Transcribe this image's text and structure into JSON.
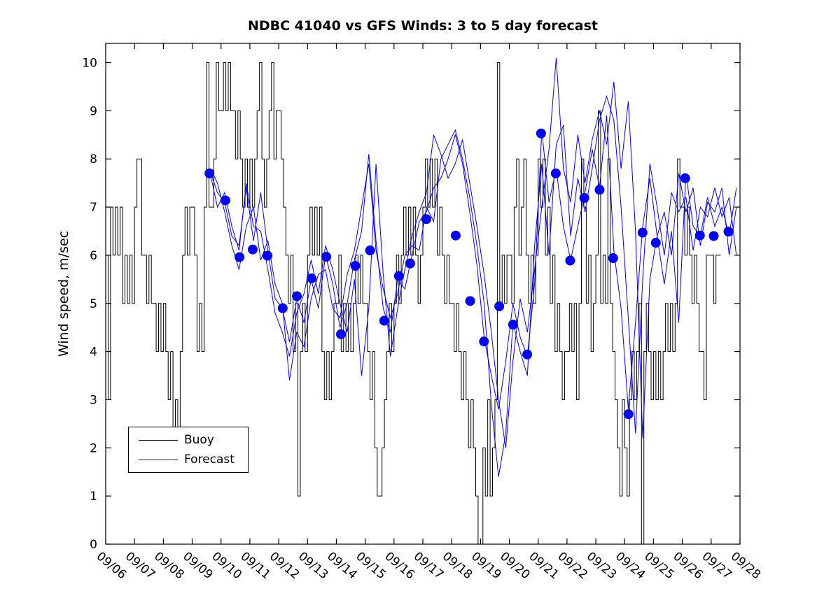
{
  "chart_data": {
    "type": "line",
    "title": "NDBC 41040 vs GFS Winds: 3 to 5 day forecast",
    "xlabel": "",
    "ylabel": "Wind speed, m/sec",
    "grid": false,
    "background_color": "#ffffff",
    "axis_color": "#000000",
    "ylim": [
      0,
      10.4
    ],
    "y_ticks": [
      0,
      1,
      2,
      3,
      4,
      5,
      6,
      7,
      8,
      9,
      10
    ],
    "x_tick_labels": [
      "09/06",
      "09/07",
      "09/08",
      "09/09",
      "09/10",
      "09/11",
      "09/12",
      "09/13",
      "09/14",
      "09/15",
      "09/16",
      "09/17",
      "09/18",
      "09/19",
      "09/20",
      "09/21",
      "09/22",
      "09/23",
      "09/24",
      "09/25",
      "09/26",
      "09/27",
      "09/28"
    ],
    "x_tick_angle_deg": 40,
    "legend": {
      "position": "lower-left",
      "entries": [
        {
          "label": "Buoy",
          "color": "#000000"
        },
        {
          "label": "Forecast",
          "color": "#0000ff"
        }
      ]
    },
    "buoy": {
      "name": "Buoy",
      "color": "#000000",
      "start_day": 0,
      "step_days": 0.0833333,
      "values": [
        6,
        3,
        7,
        6,
        7,
        6,
        7,
        5,
        6,
        5,
        6,
        5,
        7,
        8,
        8,
        6,
        6,
        5,
        6,
        5,
        5,
        4,
        5,
        4,
        5,
        4,
        3,
        4,
        2,
        3,
        2,
        4,
        6,
        7,
        6,
        7,
        7,
        6,
        4,
        5,
        4,
        7,
        10,
        7,
        7,
        8,
        10,
        9,
        9,
        10,
        9,
        10,
        9,
        9,
        8,
        9,
        8,
        7,
        8,
        7,
        8,
        7,
        8,
        9,
        10,
        8,
        7,
        8,
        9,
        10,
        8,
        9,
        9,
        8,
        7,
        6,
        5,
        6,
        4,
        5,
        1,
        4,
        5,
        4,
        6,
        7,
        6,
        7,
        6,
        7,
        4,
        3,
        4,
        3,
        4,
        5,
        5,
        6,
        4,
        5,
        4,
        5,
        4,
        5,
        6,
        5,
        6,
        5,
        5,
        4,
        3,
        4,
        2,
        1,
        1,
        2,
        3,
        4,
        5,
        4,
        5,
        6,
        5,
        6,
        7,
        6,
        7,
        6,
        7,
        6,
        5,
        6,
        7,
        8,
        7,
        8,
        7,
        8,
        6,
        7,
        6,
        5,
        6,
        5,
        5,
        4,
        5,
        4,
        3,
        4,
        3,
        2,
        3,
        2,
        1,
        0,
        0,
        2,
        1,
        3,
        1,
        2,
        3,
        10,
        5,
        6,
        5,
        6,
        6,
        5,
        7,
        8,
        6,
        7,
        8,
        6,
        5,
        6,
        5,
        6,
        8,
        7,
        8,
        6,
        7,
        5,
        6,
        4,
        5,
        4,
        3,
        4,
        4,
        5,
        4,
        5,
        3,
        5,
        8,
        7,
        5,
        6,
        4,
        5,
        6,
        9,
        5,
        6,
        5,
        8,
        5,
        4,
        3,
        2,
        1,
        3,
        2,
        1,
        3,
        4,
        3,
        4,
        5,
        0,
        4,
        5,
        4,
        3,
        4,
        3,
        4,
        3,
        4,
        5,
        4,
        5,
        4,
        5,
        8,
        7,
        7,
        6,
        7,
        6,
        5,
        6,
        5,
        4,
        4,
        3,
        6,
        6,
        6,
        5,
        6,
        6
      ]
    },
    "forecast_lines": {
      "name": "Forecast",
      "color": "#0000ff",
      "start_day": 3.625,
      "step_days": 0.25,
      "series": [
        {
          "name": "forecast-3day",
          "values": [
            7.75,
            7.3,
            7.1,
            6.4,
            6.2,
            7.4,
            6.3,
            7.3,
            6.1,
            5.1,
            4.9,
            4.2,
            5.1,
            4.6,
            5.5,
            4.9,
            6.0,
            5.4,
            4.5,
            5.0,
            5.9,
            6.5,
            8.1,
            6.3,
            4.9,
            4.4,
            5.5,
            5.3,
            6.0,
            6.7,
            6.9,
            7.4,
            7.6,
            8.0,
            8.5,
            7.9,
            6.9,
            5.8,
            4.3,
            3.5,
            2.8,
            3.8,
            5.0,
            4.3,
            3.9,
            5.4,
            8.6,
            7.1,
            7.8,
            6.6,
            5.9,
            6.6,
            7.3,
            8.2,
            7.4,
            8.9,
            6.1,
            4.9,
            2.8,
            4.6,
            6.6,
            7.6,
            6.4,
            5.4,
            6.5,
            4.6,
            7.7,
            6.6,
            6.4,
            7.2,
            6.6,
            7.0,
            6.4,
            7.4
          ]
        },
        {
          "name": "forecast-4day",
          "values": [
            7.8,
            7.5,
            6.9,
            6.2,
            5.7,
            6.6,
            7.0,
            5.9,
            6.3,
            5.4,
            5.0,
            3.4,
            4.4,
            4.1,
            5.1,
            5.6,
            5.7,
            4.9,
            4.7,
            5.6,
            6.1,
            7.0,
            7.9,
            6.1,
            5.3,
            4.7,
            5.2,
            6.0,
            6.2,
            6.1,
            7.0,
            6.7,
            8.0,
            8.3,
            8.6,
            8.0,
            7.2,
            6.2,
            5.0,
            2.9,
            1.4,
            2.3,
            4.6,
            4.0,
            3.5,
            6.2,
            7.9,
            6.0,
            8.3,
            8.7,
            6.4,
            7.6,
            6.9,
            7.8,
            8.8,
            9.3,
            8.8,
            7.0,
            4.7,
            2.3,
            5.5,
            7.9,
            7.0,
            6.0,
            7.3,
            6.9,
            7.2,
            6.1,
            7.0,
            6.8,
            7.4,
            6.8,
            7.2,
            6.0
          ]
        },
        {
          "name": "forecast-5day",
          "values": [
            7.7,
            7.0,
            7.3,
            6.6,
            6.1,
            7.5,
            6.6,
            6.5,
            5.7,
            4.8,
            4.4,
            3.9,
            4.8,
            5.2,
            5.9,
            5.2,
            6.2,
            5.7,
            5.0,
            4.4,
            5.5,
            3.5,
            4.9,
            7.9,
            5.6,
            3.9,
            4.9,
            5.7,
            6.4,
            6.9,
            7.3,
            8.5,
            8.1,
            7.6,
            7.9,
            8.4,
            7.5,
            6.6,
            5.6,
            4.4,
            3.0,
            2.0,
            3.8,
            5.1,
            4.4,
            5.7,
            7.0,
            8.2,
            10.1,
            7.8,
            7.1,
            8.5,
            7.5,
            8.4,
            9.0,
            8.3,
            9.6,
            7.8,
            9.2,
            6.5,
            2.2,
            5.5,
            6.4,
            6.9,
            6.0,
            7.7,
            6.9,
            7.4,
            6.2,
            7.1,
            6.9,
            7.4,
            6.0,
            7.0
          ]
        }
      ]
    },
    "forecast_markers": {
      "marker": "filled-circle",
      "color": "#0000ff",
      "days": [
        3.6,
        4.15,
        4.64,
        5.1,
        5.61,
        6.14,
        6.63,
        7.14,
        7.65,
        8.16,
        8.66,
        9.17,
        9.66,
        10.17,
        10.56,
        11.12,
        12.14,
        12.64,
        13.12,
        13.65,
        14.13,
        14.62,
        15.1,
        15.61,
        16.11,
        16.6,
        17.13,
        17.6,
        18.13,
        18.62,
        19.08,
        20.1,
        20.61,
        21.09,
        21.6
      ],
      "values": [
        7.7,
        7.14,
        5.96,
        6.12,
        5.99,
        4.9,
        5.15,
        5.52,
        5.97,
        4.36,
        5.78,
        6.1,
        4.64,
        5.57,
        5.83,
        6.75,
        6.41,
        5.05,
        4.21,
        4.94,
        4.56,
        3.94,
        8.53,
        7.7,
        5.89,
        7.19,
        7.36,
        5.94,
        2.7,
        6.47,
        6.26,
        7.6,
        6.41,
        6.4,
        6.49
      ]
    }
  }
}
